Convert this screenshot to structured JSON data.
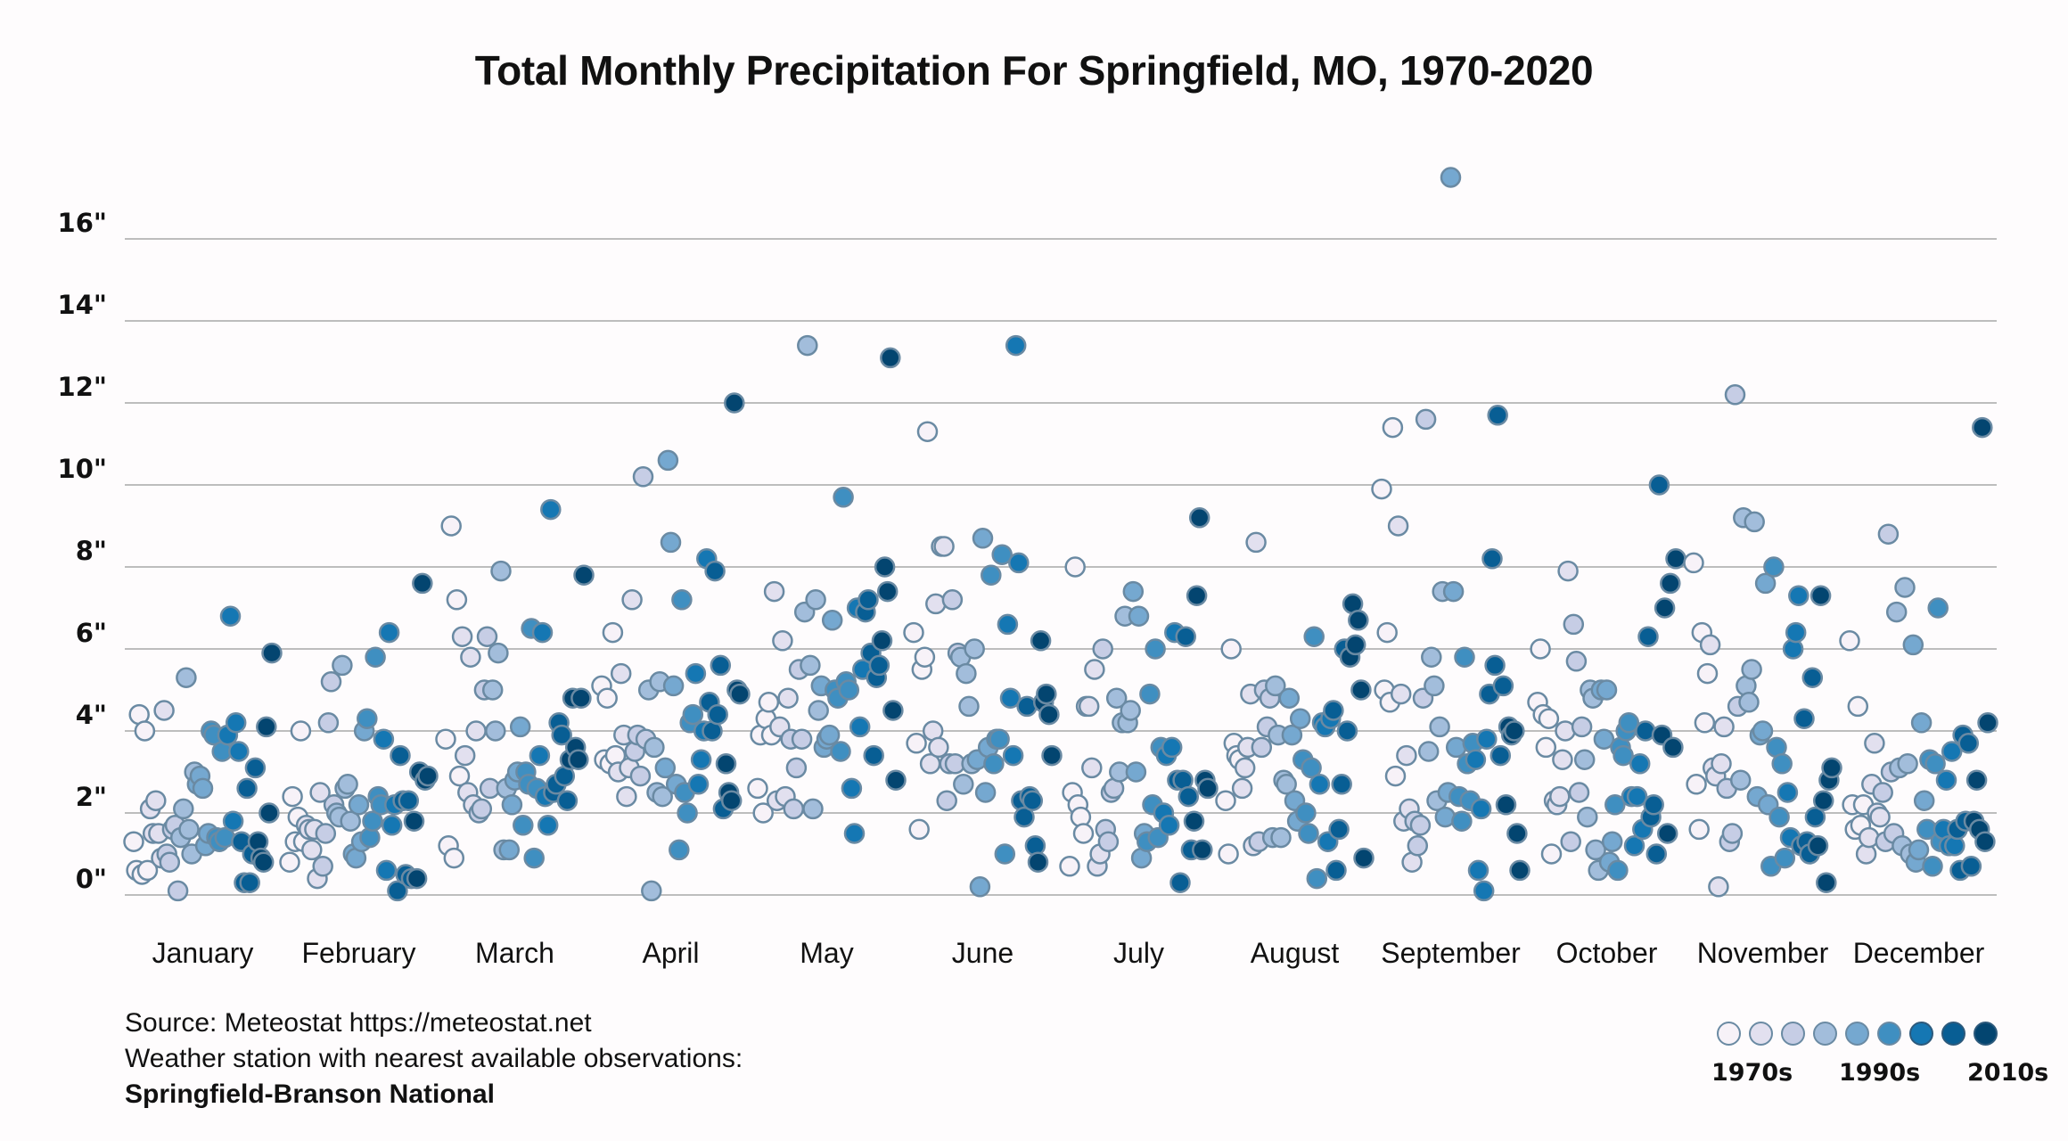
{
  "chart_data": {
    "type": "scatter",
    "title": "Total Monthly Precipitation For Springfield, MO, 1970-2020",
    "xlabel": "",
    "ylabel": "",
    "ylim": [
      0,
      17.5
    ],
    "grid": true,
    "y_ticks": [
      {
        "value": 0,
        "label": "0\""
      },
      {
        "value": 2,
        "label": "2\""
      },
      {
        "value": 4,
        "label": "4\""
      },
      {
        "value": 6,
        "label": "6\""
      },
      {
        "value": 8,
        "label": "8\""
      },
      {
        "value": 10,
        "label": "10\""
      },
      {
        "value": 12,
        "label": "12\""
      },
      {
        "value": 14,
        "label": "14\""
      },
      {
        "value": 16,
        "label": "16\""
      }
    ],
    "categories": [
      "January",
      "February",
      "March",
      "April",
      "May",
      "June",
      "July",
      "August",
      "September",
      "October",
      "November",
      "December"
    ],
    "years": [
      1970,
      2020
    ],
    "series": [
      {
        "name": "January",
        "values": [
          1.3,
          0.6,
          4.4,
          0.5,
          4.0,
          0.6,
          2.1,
          1.5,
          2.3,
          1.5,
          0.9,
          4.5,
          1.0,
          0.8,
          1.6,
          1.7,
          0.1,
          1.4,
          2.1,
          5.3,
          1.6,
          1.0,
          3.0,
          2.7,
          2.9,
          2.6,
          1.2,
          1.5,
          4.0,
          3.9,
          1.4,
          1.3,
          3.5,
          1.4,
          3.9,
          6.8,
          1.8,
          4.2,
          3.5,
          1.3,
          0.3,
          2.6,
          0.3,
          1.0,
          3.1,
          1.3,
          0.9,
          0.8,
          4.1,
          2.0,
          5.9
        ]
      },
      {
        "name": "February",
        "values": [
          0.8,
          2.4,
          1.3,
          1.9,
          4.0,
          1.3,
          1.7,
          1.6,
          1.1,
          1.6,
          0.4,
          2.5,
          0.7,
          1.5,
          4.2,
          5.2,
          2.2,
          2.0,
          1.9,
          5.6,
          2.6,
          2.7,
          1.8,
          1.0,
          0.9,
          2.2,
          1.3,
          4.0,
          4.3,
          1.4,
          1.8,
          5.8,
          2.4,
          2.2,
          3.8,
          0.6,
          6.4,
          1.7,
          2.2,
          0.1,
          3.4,
          2.3,
          0.5,
          2.3,
          0.4,
          1.8,
          0.4,
          3.0,
          7.6,
          2.8,
          2.9
        ]
      },
      {
        "name": "March",
        "values": [
          3.8,
          1.2,
          9.0,
          0.9,
          7.2,
          2.9,
          6.3,
          3.4,
          2.5,
          5.8,
          2.2,
          4.0,
          2.0,
          2.1,
          5.0,
          6.3,
          2.6,
          5.0,
          4.0,
          5.9,
          7.9,
          1.1,
          2.6,
          1.1,
          2.2,
          2.8,
          3.0,
          4.1,
          1.7,
          3.0,
          2.7,
          6.5,
          0.9,
          2.6,
          3.4,
          6.4,
          2.4,
          1.7,
          9.4,
          2.5,
          2.7,
          4.2,
          3.9,
          2.9,
          2.3,
          3.3,
          4.8,
          3.6,
          3.3,
          4.8,
          7.8
        ]
      },
      {
        "name": "April",
        "values": [
          5.1,
          3.3,
          4.8,
          3.2,
          6.4,
          3.4,
          3.0,
          5.4,
          3.9,
          2.4,
          3.1,
          7.2,
          3.5,
          3.9,
          2.9,
          10.2,
          3.8,
          5.0,
          0.1,
          3.6,
          2.5,
          5.2,
          2.4,
          3.1,
          10.6,
          8.6,
          5.1,
          2.7,
          1.1,
          7.2,
          2.5,
          2.0,
          4.2,
          4.4,
          5.4,
          2.7,
          3.3,
          4.0,
          8.2,
          4.7,
          4.0,
          7.9,
          4.4,
          5.6,
          2.1,
          3.2,
          2.5,
          2.3,
          12.0,
          5.0,
          4.9
        ]
      },
      {
        "name": "May",
        "values": [
          2.6,
          3.9,
          2.0,
          4.3,
          4.7,
          3.9,
          7.4,
          2.3,
          4.1,
          6.2,
          2.4,
          4.8,
          3.8,
          2.1,
          3.1,
          5.5,
          3.8,
          6.9,
          13.4,
          5.6,
          2.1,
          7.2,
          4.5,
          5.1,
          3.6,
          3.8,
          3.9,
          6.7,
          5.0,
          4.8,
          3.5,
          9.7,
          5.2,
          5.0,
          2.6,
          1.5,
          7.0,
          4.1,
          5.5,
          6.9,
          7.2,
          5.9,
          3.4,
          5.3,
          5.6,
          6.2,
          8.0,
          7.4,
          13.1,
          4.5,
          2.8
        ]
      },
      {
        "name": "June",
        "values": [
          6.4,
          3.7,
          1.6,
          5.5,
          5.8,
          11.3,
          3.2,
          4.0,
          7.1,
          3.6,
          8.5,
          8.5,
          2.3,
          3.2,
          7.2,
          3.2,
          5.9,
          5.8,
          2.7,
          5.4,
          4.6,
          3.2,
          6.0,
          3.3,
          0.2,
          8.7,
          2.5,
          3.6,
          7.8,
          3.2,
          3.8,
          3.8,
          8.3,
          1.0,
          6.6,
          4.8,
          3.4,
          13.4,
          8.1,
          2.3,
          1.9,
          4.6,
          2.4,
          2.3,
          1.2,
          0.8,
          6.2,
          4.7,
          4.9,
          4.4,
          3.4
        ]
      },
      {
        "name": "July",
        "values": [
          0.7,
          2.5,
          8.0,
          2.2,
          1.9,
          1.5,
          4.6,
          4.6,
          3.1,
          5.5,
          0.7,
          1.0,
          6.0,
          1.6,
          1.3,
          2.5,
          2.6,
          4.8,
          3.0,
          4.2,
          6.8,
          4.2,
          4.5,
          7.4,
          3.0,
          6.8,
          0.9,
          1.5,
          1.3,
          4.9,
          2.2,
          6.0,
          1.4,
          3.6,
          2.0,
          3.4,
          1.7,
          3.6,
          6.4,
          2.8,
          0.3,
          2.8,
          6.3,
          2.4,
          1.1,
          1.8,
          7.3,
          9.2,
          1.1,
          2.8,
          2.6
        ]
      },
      {
        "name": "August",
        "values": [
          2.3,
          1.0,
          6.0,
          3.7,
          3.4,
          3.3,
          2.6,
          3.1,
          3.6,
          4.9,
          1.2,
          8.6,
          1.3,
          3.6,
          5.0,
          4.1,
          4.8,
          1.4,
          5.1,
          3.9,
          1.4,
          2.8,
          2.7,
          4.8,
          3.9,
          2.3,
          1.8,
          4.3,
          3.3,
          2.0,
          1.5,
          3.1,
          6.3,
          0.4,
          2.7,
          4.2,
          4.1,
          1.3,
          4.3,
          4.5,
          0.6,
          1.6,
          2.7,
          6.0,
          4.0,
          5.8,
          7.1,
          6.1,
          6.7,
          5.0,
          0.9
        ]
      },
      {
        "name": "September",
        "values": [
          9.9,
          5.0,
          6.4,
          4.7,
          11.4,
          2.9,
          9.0,
          4.9,
          1.8,
          3.4,
          2.1,
          0.8,
          1.8,
          1.2,
          1.7,
          4.8,
          11.6,
          3.5,
          5.8,
          5.1,
          2.3,
          4.1,
          7.4,
          1.9,
          2.5,
          17.5,
          7.4,
          3.6,
          2.4,
          1.8,
          5.8,
          3.2,
          2.3,
          3.7,
          3.3,
          0.6,
          2.1,
          0.1,
          3.8,
          4.9,
          8.2,
          5.6,
          11.7,
          3.4,
          5.1,
          2.2,
          4.1,
          3.9,
          4.0,
          1.5,
          0.6
        ]
      },
      {
        "name": "October",
        "values": [
          4.7,
          6.0,
          4.4,
          3.6,
          4.3,
          1.0,
          2.3,
          2.2,
          2.4,
          3.3,
          4.0,
          7.9,
          1.3,
          6.6,
          5.7,
          2.5,
          4.1,
          3.3,
          1.9,
          5.0,
          4.8,
          1.1,
          0.6,
          5.0,
          3.8,
          5.0,
          0.8,
          1.3,
          2.2,
          0.6,
          3.6,
          3.4,
          4.0,
          4.2,
          2.4,
          1.2,
          2.4,
          3.2,
          1.6,
          4.0,
          6.3,
          1.9,
          2.2,
          1.0,
          10.0,
          3.9,
          7.0,
          1.5,
          7.6,
          3.6,
          8.2
        ]
      },
      {
        "name": "November",
        "values": [
          8.1,
          2.7,
          1.6,
          6.4,
          4.2,
          5.4,
          6.1,
          3.1,
          2.9,
          0.2,
          3.2,
          4.1,
          2.6,
          1.3,
          1.5,
          12.2,
          4.6,
          2.8,
          9.2,
          5.1,
          4.7,
          5.5,
          9.1,
          2.4,
          3.9,
          4.0,
          7.6,
          2.2,
          0.7,
          8.0,
          3.6,
          1.9,
          3.2,
          0.9,
          2.5,
          1.4,
          6.0,
          6.4,
          7.3,
          1.2,
          4.3,
          1.3,
          1.0,
          5.3,
          1.9,
          1.2,
          7.3,
          2.3,
          0.3,
          2.8,
          3.1
        ]
      },
      {
        "name": "December",
        "values": [
          6.2,
          2.2,
          1.6,
          4.6,
          1.7,
          2.2,
          1.0,
          1.4,
          2.7,
          3.7,
          2.0,
          1.9,
          2.5,
          1.3,
          8.8,
          3.0,
          1.5,
          6.9,
          3.1,
          1.2,
          7.5,
          3.2,
          1.0,
          6.1,
          0.8,
          1.1,
          4.2,
          2.3,
          1.6,
          3.3,
          0.7,
          3.2,
          7.0,
          1.3,
          1.6,
          2.8,
          1.2,
          3.5,
          1.2,
          1.6,
          0.6,
          3.9,
          1.8,
          3.7,
          0.7,
          1.8,
          2.8,
          1.6,
          11.4,
          1.3,
          4.2
        ]
      }
    ],
    "color_scale": {
      "label_by": "decade",
      "colors": [
        "#f7f2f8",
        "#e2e0ef",
        "#c6cde5",
        "#a2bddb",
        "#75a8d0",
        "#3f8fc1",
        "#1577b3",
        "#085e94",
        "#034570"
      ],
      "legend_labels": [
        "1970s",
        "1990s",
        "2010s"
      ],
      "legend_placement": "bottom-right"
    }
  },
  "source": {
    "line1": "Source: Meteostat https://meteostat.net",
    "line2": "Weather station with nearest available observations:",
    "line3": "Springfield-Branson National"
  },
  "legend": {
    "label_1970s": "1970s",
    "label_1990s": "1990s",
    "label_2010s": "2010s"
  }
}
